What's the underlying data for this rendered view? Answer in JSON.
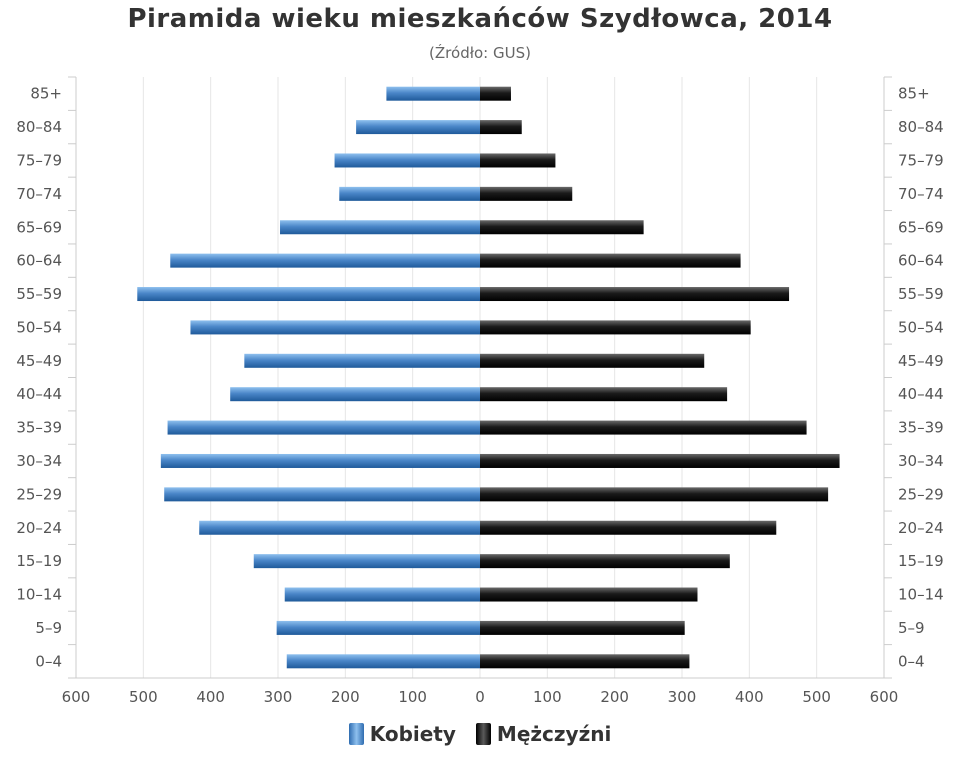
{
  "chart_data": {
    "type": "bar",
    "orientation": "horizontal-pyramid",
    "title": "Piramida wieku mieszkańców Szydłowca, 2014",
    "subtitle": "(Źródło: GUS)",
    "categories": [
      "85+",
      "80-84",
      "75-79",
      "70-74",
      "65-69",
      "60-64",
      "55-59",
      "50-54",
      "45-49",
      "40-44",
      "35-39",
      "30-34",
      "25-29",
      "20-24",
      "15-19",
      "10-14",
      "5-9",
      "0-4"
    ],
    "series": [
      {
        "name": "Kobiety",
        "color": "#4a86c8",
        "values": [
          139,
          184,
          216,
          209,
          297,
          460,
          509,
          430,
          350,
          371,
          464,
          474,
          469,
          417,
          336,
          290,
          302,
          287
        ]
      },
      {
        "name": "Mężczyźni",
        "color": "#1a1a1a",
        "values": [
          46,
          62,
          112,
          137,
          243,
          387,
          459,
          402,
          333,
          367,
          485,
          534,
          517,
          440,
          371,
          323,
          304,
          311
        ]
      }
    ],
    "xlim": [
      -600,
      600
    ],
    "x_ticks": [
      -600,
      -500,
      -400,
      -300,
      -200,
      -100,
      0,
      100,
      200,
      300,
      400,
      500,
      600
    ],
    "x_tick_labels": [
      "600",
      "500",
      "400",
      "300",
      "200",
      "100",
      "0",
      "100",
      "200",
      "300",
      "400",
      "500",
      "600"
    ],
    "grid": true,
    "legend_position": "bottom-center",
    "category_labels_both_sides": true
  }
}
